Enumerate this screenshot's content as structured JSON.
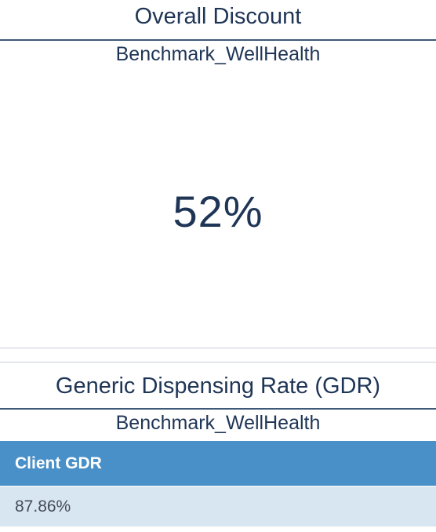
{
  "overall_discount": {
    "title": "Overall Discount",
    "benchmark": "Benchmark_WellHealth",
    "value": "52%"
  },
  "gdr": {
    "title": "Generic Dispensing Rate (GDR)",
    "benchmark": "Benchmark_WellHealth",
    "table": {
      "header": "Client GDR",
      "rows": [
        "87.86%"
      ]
    }
  },
  "colors": {
    "text_primary": "#1f3556",
    "header_bg": "#4a90c8",
    "row_bg": "#d8e6f2",
    "divider": "#3d5878"
  }
}
